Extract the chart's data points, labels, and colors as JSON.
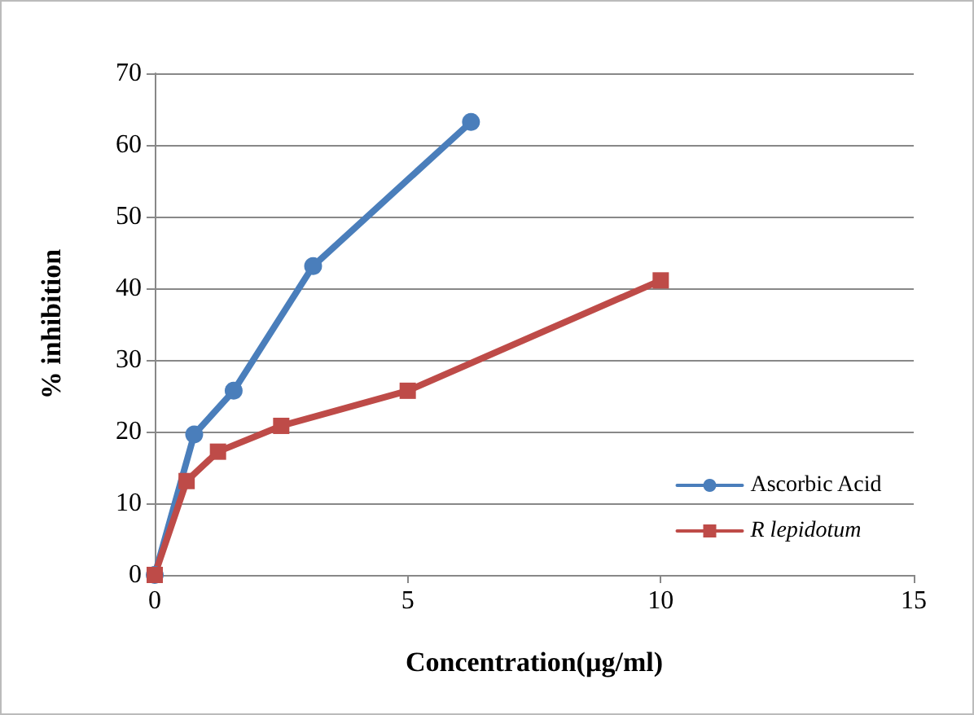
{
  "chart_data": {
    "type": "line",
    "xlabel": "Concentration(µg/ml)",
    "ylabel": "% inhibition",
    "xlim": [
      0,
      15
    ],
    "xticks": [
      0,
      5,
      10,
      15
    ],
    "ylim": [
      0,
      70
    ],
    "yticks": [
      0,
      10,
      20,
      30,
      40,
      50,
      60,
      70
    ],
    "grid": "y",
    "legend": "bottom right",
    "line_style": "solid",
    "series": [
      {
        "name": "Ascorbic Acid",
        "color": "#4a7ebb",
        "marker": "circle",
        "x": [
          0,
          0.78,
          1.56,
          3.13,
          6.25
        ],
        "values": [
          0,
          19.6,
          25.7,
          43.1,
          63.2
        ]
      },
      {
        "name": "R lepidotum",
        "color": "#be4b48",
        "marker": "square",
        "x": [
          0,
          0.63,
          1.25,
          2.5,
          5,
          10
        ],
        "values": [
          0,
          13.1,
          17.2,
          20.8,
          25.7,
          41.1
        ]
      }
    ]
  }
}
